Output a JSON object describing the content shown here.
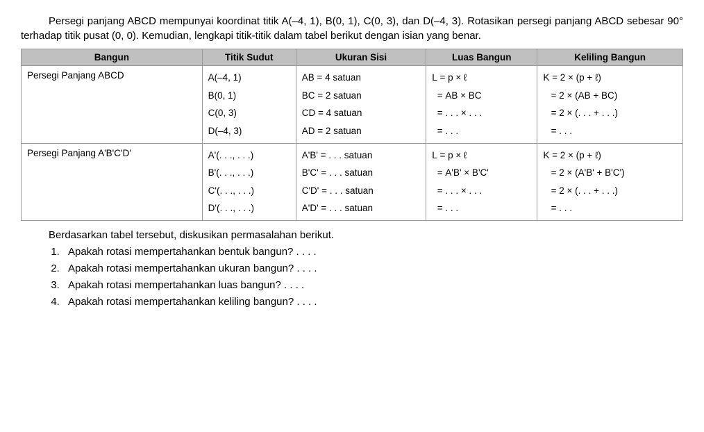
{
  "intro": "Persegi panjang ABCD mempunyai koordinat titik A(–4, 1), B(0, 1), C(0, 3), dan D(–4, 3). Rotasikan persegi panjang ABCD sebesar 90° terhadap titik pusat (0, 0). Kemudian, lengkapi titik-titik dalam tabel berikut dengan isian yang benar.",
  "table": {
    "headers": [
      "Bangun",
      "Titik Sudut",
      "Ukuran Sisi",
      "Luas Bangun",
      "Keliling Bangun"
    ],
    "header_bg": "#c0c0c0",
    "border_color": "#999999",
    "font_size": 13.5,
    "rows": [
      {
        "bangun": "Persegi Panjang ABCD",
        "titik": "A(–4, 1)\nB(0, 1)\nC(0, 3)\nD(–4, 3)",
        "ukuran": "AB = 4 satuan\nBC = 2 satuan\nCD = 4 satuan\nAD = 2 satuan",
        "luas": "L = p × ℓ\n  = AB × BC\n  = . . . × . . .\n  = . . .",
        "keliling": "K = 2 × (p + ℓ)\n   = 2 × (AB + BC)\n   = 2 × (. . . + . . .)\n   = . . ."
      },
      {
        "bangun": "Persegi Panjang A'B'C'D'",
        "titik": "A'(. . ., . . .)\nB'(. . ., . . .)\nC'(. . ., . . .)\nD'(. . ., . . .)",
        "ukuran": "A'B' = . . . satuan\nB'C' = . . . satuan\nC'D' = . . . satuan\nA'D' = . . . satuan",
        "luas": "L = p × ℓ\n  = A'B' × B'C'\n  = . . . × . . .\n  = . . .",
        "keliling": "K = 2 × (p + ℓ)\n   = 2 × (A'B' + B'C')\n   = 2 × (. . . + . . .)\n   = . . ."
      }
    ]
  },
  "followup_intro": "Berdasarkan tabel tersebut, diskusikan permasalahan berikut.",
  "questions": [
    "Apakah rotasi mempertahankan bentuk bangun? . . . .",
    "Apakah rotasi mempertahankan ukuran bangun? . . . .",
    "Apakah rotasi mempertahankan luas bangun? . . . .",
    "Apakah rotasi mempertahankan keliling bangun? . . . ."
  ],
  "style": {
    "background_color": "#ffffff",
    "text_color": "#000000",
    "body_font_size": 15
  }
}
